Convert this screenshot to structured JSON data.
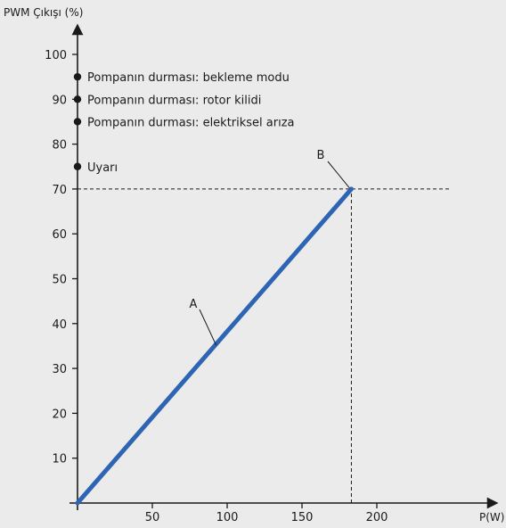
{
  "chart_data": {
    "type": "line",
    "ylabel": "PWM Çıkışı (%)",
    "xlabel": "P(W)",
    "x_ticks": [
      50,
      100,
      150,
      200
    ],
    "y_ticks": [
      10,
      20,
      30,
      40,
      50,
      60,
      70,
      80,
      90,
      100
    ],
    "xlim": [
      0,
      250
    ],
    "ylim": [
      0,
      100
    ],
    "grid": false,
    "series": [
      {
        "x": [
          0,
          183
        ],
        "y": [
          0,
          70
        ],
        "color": "#2d64b4"
      }
    ],
    "reference_lines": [
      {
        "from": [
          0,
          70
        ],
        "to": [
          250,
          70
        ],
        "style": "dashed"
      },
      {
        "from": [
          183,
          0
        ],
        "to": [
          183,
          70
        ],
        "style": "dashed"
      }
    ],
    "status_markers": [
      {
        "y": 95,
        "label": "Pompanın durması: bekleme modu"
      },
      {
        "y": 90,
        "label": "Pompanın durması: rotor kilidi"
      },
      {
        "y": 85,
        "label": "Pompanın durması: elektriksel arıza"
      },
      {
        "y": 75,
        "label": "Uyarı"
      }
    ],
    "callouts": [
      {
        "label": "A",
        "x": 92,
        "y": 35
      },
      {
        "label": "B",
        "x": 183,
        "y": 70
      }
    ]
  }
}
